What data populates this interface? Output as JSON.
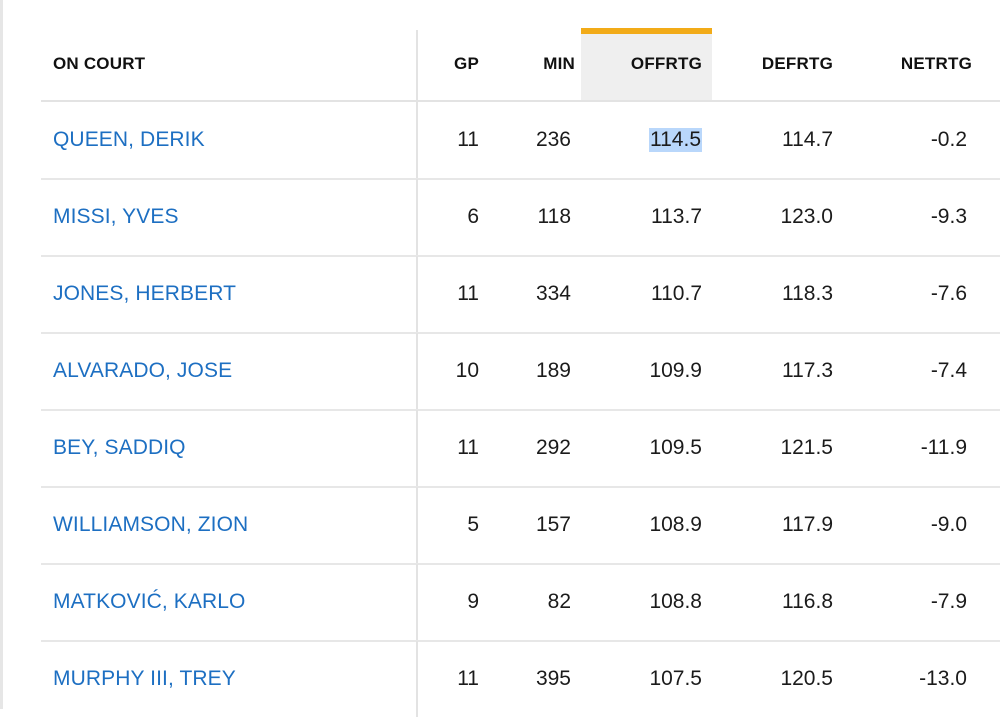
{
  "table": {
    "columns": {
      "player": "ON COURT",
      "gp": "GP",
      "min": "MIN",
      "offrtg": "OFFRTG",
      "defrtg": "DEFRTG",
      "netrtg": "NETRTG"
    },
    "sorted_column": "OFFRTG",
    "sort_indicator_color": "#f2ab18",
    "link_color": "#1d6fc2",
    "selection_color": "#b9d7fb",
    "rows": [
      {
        "player": "QUEEN, DERIK",
        "gp": "11",
        "min": "236",
        "offrtg": "114.5",
        "defrtg": "114.7",
        "netrtg": "-0.2"
      },
      {
        "player": "MISSI, YVES",
        "gp": "6",
        "min": "118",
        "offrtg": "113.7",
        "defrtg": "123.0",
        "netrtg": "-9.3"
      },
      {
        "player": "JONES, HERBERT",
        "gp": "11",
        "min": "334",
        "offrtg": "110.7",
        "defrtg": "118.3",
        "netrtg": "-7.6"
      },
      {
        "player": "ALVARADO, JOSE",
        "gp": "10",
        "min": "189",
        "offrtg": "109.9",
        "defrtg": "117.3",
        "netrtg": "-7.4"
      },
      {
        "player": "BEY, SADDIQ",
        "gp": "11",
        "min": "292",
        "offrtg": "109.5",
        "defrtg": "121.5",
        "netrtg": "-11.9"
      },
      {
        "player": "WILLIAMSON, ZION",
        "gp": "5",
        "min": "157",
        "offrtg": "108.9",
        "defrtg": "117.9",
        "netrtg": "-9.0"
      },
      {
        "player": "MATKOVIĆ, KARLO",
        "gp": "9",
        "min": "82",
        "offrtg": "108.8",
        "defrtg": "116.8",
        "netrtg": "-7.9"
      },
      {
        "player": "MURPHY III, TREY",
        "gp": "11",
        "min": "395",
        "offrtg": "107.5",
        "defrtg": "120.5",
        "netrtg": "-13.0"
      }
    ]
  }
}
